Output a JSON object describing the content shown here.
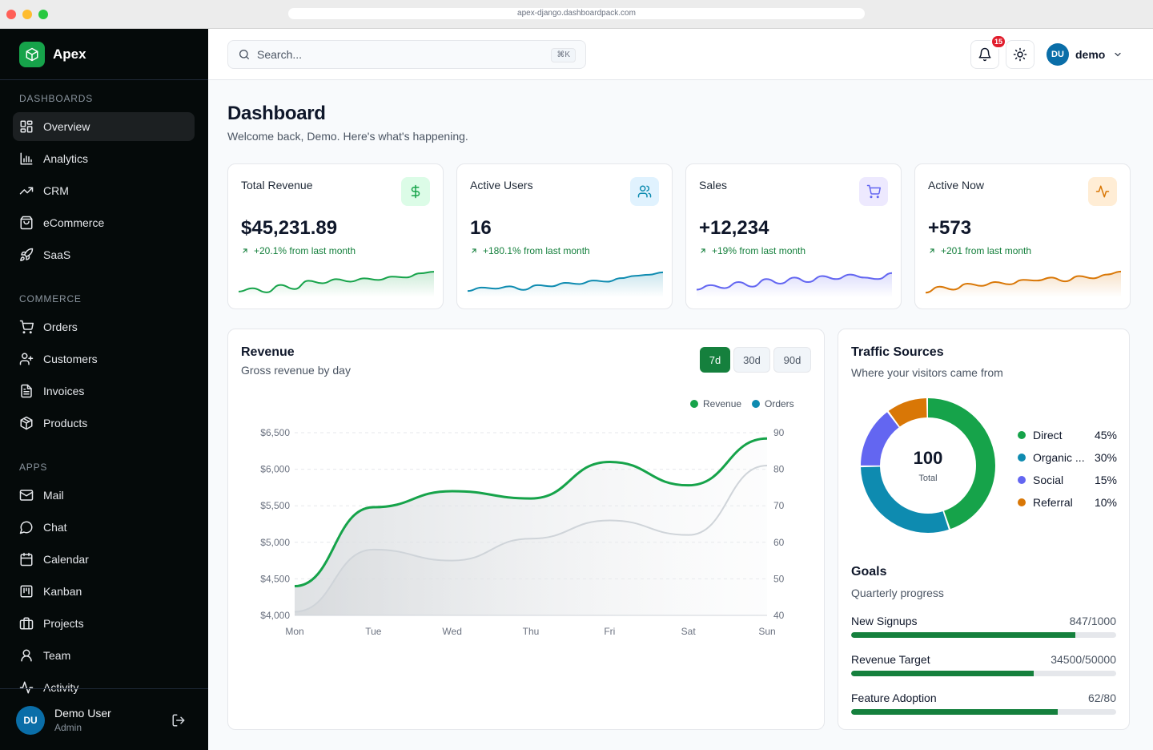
{
  "browser": {
    "url": "apex-django.dashboardpack.com"
  },
  "brand": {
    "name": "Apex"
  },
  "sidebar": {
    "sections": [
      {
        "title": "DASHBOARDS",
        "items": [
          {
            "label": "Overview",
            "icon": "layout-grid-icon",
            "active": true
          },
          {
            "label": "Analytics",
            "icon": "bar-chart-icon"
          },
          {
            "label": "CRM",
            "icon": "trending-up-icon"
          },
          {
            "label": "eCommerce",
            "icon": "shopping-bag-icon"
          },
          {
            "label": "SaaS",
            "icon": "rocket-icon"
          }
        ]
      },
      {
        "title": "COMMERCE",
        "items": [
          {
            "label": "Orders",
            "icon": "cart-icon"
          },
          {
            "label": "Customers",
            "icon": "user-plus-icon"
          },
          {
            "label": "Invoices",
            "icon": "file-text-icon"
          },
          {
            "label": "Products",
            "icon": "package-icon"
          }
        ]
      },
      {
        "title": "APPS",
        "items": [
          {
            "label": "Mail",
            "icon": "mail-icon"
          },
          {
            "label": "Chat",
            "icon": "chat-bubble-icon"
          },
          {
            "label": "Calendar",
            "icon": "calendar-icon"
          },
          {
            "label": "Kanban",
            "icon": "kanban-icon"
          },
          {
            "label": "Projects",
            "icon": "briefcase-icon"
          },
          {
            "label": "Team",
            "icon": "user-icon"
          },
          {
            "label": "Activity",
            "icon": "activity-icon"
          }
        ]
      }
    ],
    "user": {
      "initials": "DU",
      "name": "Demo User",
      "role": "Admin"
    }
  },
  "topbar": {
    "search_placeholder": "Search...",
    "shortcut": "⌘K",
    "notification_count": "15",
    "profile": {
      "initials": "DU",
      "name": "demo"
    }
  },
  "page": {
    "title": "Dashboard",
    "subtitle": "Welcome back, Demo. Here's what's happening."
  },
  "stats": [
    {
      "title": "Total Revenue",
      "value": "$45,231.89",
      "change": "+20.1% from last month",
      "color": "#16a34a",
      "icon_bg": "#dcfce7",
      "icon": "dollar-icon",
      "spark": [
        18,
        22,
        17,
        26,
        21,
        31,
        28,
        33,
        30,
        34,
        32,
        36,
        35,
        40,
        42
      ]
    },
    {
      "title": "Active Users",
      "value": "16",
      "change": "+180.1% from last month",
      "color": "#0e8bb0",
      "icon_bg": "#e0f2fe",
      "icon": "users-icon",
      "spark": [
        16,
        19,
        18,
        20,
        17,
        21,
        20,
        23,
        22,
        25,
        24,
        27,
        29,
        30,
        32
      ]
    },
    {
      "title": "Sales",
      "value": "+12,234",
      "change": "+19% from last month",
      "color": "#6366f1",
      "icon_bg": "#ede9fe",
      "icon": "cart-icon",
      "spark": [
        26,
        29,
        27,
        31,
        28,
        33,
        30,
        34,
        31,
        35,
        33,
        36,
        34,
        33,
        37
      ]
    },
    {
      "title": "Active Now",
      "value": "+573",
      "change": "+201 from last month",
      "color": "#d97706",
      "icon_bg": "#ffedd5",
      "icon": "activity-icon",
      "spark": [
        10,
        18,
        14,
        22,
        19,
        24,
        21,
        27,
        26,
        30,
        25,
        32,
        29,
        34,
        38
      ]
    }
  ],
  "revenue": {
    "title": "Revenue",
    "subtitle": "Gross revenue by day",
    "ranges": [
      {
        "label": "7d",
        "active": true
      },
      {
        "label": "30d"
      },
      {
        "label": "90d"
      }
    ]
  },
  "chart_data": {
    "type": "line",
    "categories": [
      "Mon",
      "Tue",
      "Wed",
      "Thu",
      "Fri",
      "Sat",
      "Sun"
    ],
    "series": [
      {
        "name": "Revenue",
        "color": "#16a34a",
        "axis": "left",
        "values": [
          4400,
          5480,
          5700,
          5600,
          6100,
          5780,
          6420
        ]
      },
      {
        "name": "Orders",
        "color": "#cfd4d9",
        "axis": "right",
        "values": [
          41,
          58,
          55,
          61,
          66,
          62,
          81
        ]
      }
    ],
    "legend_colors": {
      "Revenue": "#16a34a",
      "Orders": "#0e8bb0"
    },
    "ylim_left": [
      4000,
      6500
    ],
    "yticks_left": [
      "$4,000",
      "$4,500",
      "$5,000",
      "$5,500",
      "$6,000",
      "$6,500"
    ],
    "ylim_right": [
      40,
      90
    ],
    "yticks_right": [
      "40",
      "50",
      "60",
      "70",
      "80",
      "90"
    ],
    "grid": true,
    "legend": "top-right"
  },
  "traffic": {
    "title": "Traffic Sources",
    "subtitle": "Where your visitors came from",
    "total": "100",
    "total_label": "Total",
    "sources": [
      {
        "name": "Direct",
        "percent": "45%",
        "value": 45,
        "color": "#16a34a"
      },
      {
        "name": "Organic ...",
        "percent": "30%",
        "value": 30,
        "color": "#0e8bb0"
      },
      {
        "name": "Social",
        "percent": "15%",
        "value": 15,
        "color": "#6366f1"
      },
      {
        "name": "Referral",
        "percent": "10%",
        "value": 10,
        "color": "#d97706"
      }
    ]
  },
  "goals": {
    "title": "Goals",
    "subtitle": "Quarterly progress",
    "items": [
      {
        "label": "New Signups",
        "value": "847/1000",
        "fraction": 0.847
      },
      {
        "label": "Revenue Target",
        "value": "34500/50000",
        "fraction": 0.69
      },
      {
        "label": "Feature Adoption",
        "value": "62/80",
        "fraction": 0.78
      }
    ]
  }
}
